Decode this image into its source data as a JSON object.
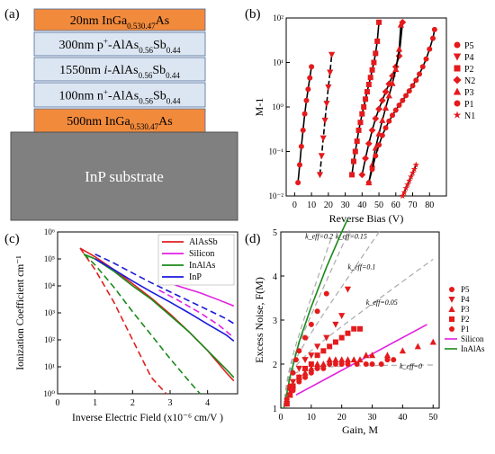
{
  "panels": {
    "a": {
      "label": "(a)",
      "layers": [
        {
          "text": "20nm In",
          "sub1": "0.53",
          "mid": "Ga",
          "sub2": "0.47",
          "tail": "As",
          "color": "#f28a3c"
        },
        {
          "text": "300nm p",
          "sup": "+",
          "mid": "-AlAs",
          "sub1": "0.56",
          "mid2": "Sb",
          "sub2": "0.44",
          "color": "#dce6f2"
        },
        {
          "text": "1550nm ",
          "ital": "i",
          "mid": "-AlAs",
          "sub1": "0.56",
          "mid2": "Sb",
          "sub2": "0.44",
          "color": "#dce6f2"
        },
        {
          "text": "100nm n",
          "sup": "+",
          "mid": "-AlAs",
          "sub1": "0.56",
          "mid2": "Sb",
          "sub2": "0.44",
          "color": "#dce6f2"
        },
        {
          "text": "500nm In",
          "sub1": "0.53",
          "mid": "Ga",
          "sub2": "0.47",
          "tail": "As",
          "color": "#f28a3c"
        }
      ],
      "substrate": {
        "label": "InP substrate",
        "color": "#808080"
      }
    }
  },
  "chart_data": [
    {
      "panel": "(b)",
      "type": "scatter",
      "xlabel": "Reverse Bias (V)",
      "ylabel": "M-1",
      "xlim": [
        -5,
        90
      ],
      "ylim": [
        0.01,
        100
      ],
      "yscale": "log",
      "xticks": [
        "0",
        "10",
        "20",
        "30",
        "40",
        "50",
        "60",
        "70",
        "80"
      ],
      "yticks": [
        "10⁻²",
        "10⁻¹",
        "10⁰",
        "10¹",
        "10²"
      ],
      "legend": [
        "P5",
        "P4",
        "P2",
        "N2",
        "P3",
        "P1",
        "N1"
      ],
      "series": [
        {
          "name": "P5",
          "x": [
            2,
            3,
            4,
            5,
            6,
            7,
            8,
            9,
            10
          ],
          "y": [
            0.02,
            0.05,
            0.13,
            0.3,
            0.7,
            1.4,
            2.5,
            4.5,
            8
          ]
        },
        {
          "name": "P4",
          "x": [
            15,
            16,
            17,
            18,
            19,
            20,
            21,
            22
          ],
          "y": [
            0.03,
            0.08,
            0.2,
            0.5,
            1.2,
            2.8,
            6,
            15
          ]
        },
        {
          "name": "P2",
          "x": [
            34,
            35,
            36,
            37,
            38,
            39,
            40,
            41,
            42,
            43,
            44,
            45,
            46,
            47,
            48,
            49,
            50
          ],
          "y": [
            0.03,
            0.06,
            0.1,
            0.17,
            0.3,
            0.45,
            0.7,
            1.0,
            1.5,
            2.2,
            3.2,
            4.6,
            6.8,
            10,
            16,
            30,
            80
          ]
        },
        {
          "name": "N2",
          "x": [
            40,
            42,
            44,
            46,
            48,
            50,
            52,
            54,
            56,
            58,
            60,
            62,
            64
          ],
          "y": [
            0.03,
            0.07,
            0.15,
            0.3,
            0.55,
            0.9,
            1.4,
            2.2,
            3.3,
            5,
            8,
            14,
            80
          ]
        },
        {
          "name": "P3",
          "x": [
            44,
            46,
            48,
            50,
            52,
            54,
            56,
            58,
            60,
            62,
            63
          ],
          "y": [
            0.02,
            0.05,
            0.12,
            0.25,
            0.5,
            0.95,
            1.8,
            3.4,
            7,
            20,
            70
          ]
        },
        {
          "name": "P1",
          "x": [
            44,
            46,
            48,
            50,
            52,
            54,
            56,
            58,
            60,
            62,
            64,
            66,
            68,
            70,
            72,
            74,
            76,
            78,
            80,
            82,
            83
          ],
          "y": [
            0.02,
            0.04,
            0.08,
            0.14,
            0.23,
            0.34,
            0.48,
            0.65,
            0.85,
            1.1,
            1.4,
            1.8,
            2.3,
            3,
            4,
            5.5,
            8,
            12,
            20,
            35,
            55
          ]
        },
        {
          "name": "N1",
          "x": [
            64,
            65,
            66,
            67,
            68,
            69,
            70,
            71,
            72
          ],
          "y": [
            0.01,
            0.012,
            0.015,
            0.018,
            0.022,
            0.027,
            0.033,
            0.04,
            0.05
          ]
        }
      ]
    },
    {
      "panel": "(c)",
      "type": "line",
      "xlabel": "Inverse Electric Field (x10⁻⁶ cm/V )",
      "ylabel": "Ionization Coefficient cm⁻¹",
      "xlim": [
        0,
        4.8
      ],
      "ylim": [
        1,
        1000000
      ],
      "yscale": "log",
      "xticks": [
        "0",
        "1",
        "2",
        "3",
        "4"
      ],
      "yticks": [
        "10⁰",
        "10¹",
        "10²",
        "10³",
        "10⁴",
        "10⁵",
        "10⁶"
      ],
      "legend": [
        "AlAsSb",
        "Silicon",
        "InAlAs",
        "InP"
      ],
      "series": [
        {
          "name": "AlAsSb",
          "color": "#e02020",
          "dash": "solid",
          "x": [
            0.6,
            1,
            1.5,
            2,
            2.5,
            3,
            3.5,
            4,
            4.5,
            4.7
          ],
          "y": [
            250000,
            120000,
            40000,
            12000,
            3500,
            900,
            200,
            40,
            6,
            3
          ]
        },
        {
          "name": "AlAsSb",
          "color": "#e02020",
          "dash": "dashed",
          "x": [
            0.6,
            1,
            1.5,
            2,
            2.5,
            2.9
          ],
          "y": [
            250000,
            40000,
            2500,
            100,
            4,
            1
          ]
        },
        {
          "name": "Silicon",
          "color": "#e020e0",
          "dash": "solid",
          "x": [
            2.7,
            3.2,
            3.8,
            4.3,
            4.7
          ],
          "y": [
            20000,
            10000,
            5500,
            3000,
            1800
          ]
        },
        {
          "name": "Silicon",
          "color": "#e020e0",
          "dash": "dashed",
          "x": [
            2.7,
            3.2,
            3.8,
            4.3,
            4.7
          ],
          "y": [
            7000,
            3000,
            1000,
            350,
            120
          ]
        },
        {
          "name": "InAlAs",
          "color": "#1a8a1a",
          "dash": "solid",
          "x": [
            0.7,
            1,
            1.5,
            2,
            2.5,
            3,
            3.5,
            4,
            4.5,
            4.7
          ],
          "y": [
            150000,
            100000,
            35000,
            10000,
            3200,
            800,
            200,
            40,
            8,
            4
          ]
        },
        {
          "name": "InAlAs",
          "color": "#1a8a1a",
          "dash": "dashed",
          "x": [
            0.7,
            1,
            1.5,
            2,
            2.5,
            3,
            3.5,
            3.8
          ],
          "y": [
            150000,
            60000,
            9000,
            1100,
            150,
            20,
            3,
            1
          ]
        },
        {
          "name": "InP",
          "color": "#1a1adc",
          "dash": "solid",
          "x": [
            1,
            1.5,
            2,
            2.5,
            3,
            3.5,
            4,
            4.5,
            4.7
          ],
          "y": [
            100000,
            40000,
            15000,
            6000,
            2500,
            1000,
            380,
            150,
            90
          ]
        },
        {
          "name": "InP",
          "color": "#1a1adc",
          "dash": "dashed",
          "x": [
            1,
            1.5,
            2,
            2.5,
            3,
            3.5,
            4,
            4.5,
            4.7
          ],
          "y": [
            150000,
            70000,
            30000,
            13000,
            6000,
            2800,
            1300,
            600,
            400
          ]
        }
      ]
    },
    {
      "panel": "(d)",
      "type": "scatter",
      "xlabel": "Gain, M",
      "ylabel": "Excess Noise, F(M)",
      "xlim": [
        0,
        52
      ],
      "ylim": [
        1,
        5
      ],
      "xticks": [
        "0",
        "10",
        "20",
        "30",
        "40",
        "50"
      ],
      "yticks": [
        "1",
        "2",
        "3",
        "4",
        "5"
      ],
      "legend": [
        "P5",
        "P4",
        "P3",
        "P2",
        "P1",
        "Silicon",
        "InAlAs"
      ],
      "keff_labels": [
        "k_eff=0.2",
        "k_eff=0.15",
        "k_eff=0.1",
        "k_eff=0.05",
        "k_eff=0"
      ],
      "series": [
        {
          "name": "P5",
          "x": [
            2,
            3,
            4,
            5,
            6,
            8,
            10,
            12,
            15
          ],
          "y": [
            1.2,
            1.5,
            1.8,
            2.1,
            2.3,
            2.6,
            2.9,
            3.2,
            3.6
          ]
        },
        {
          "name": "P4",
          "x": [
            2,
            3,
            4,
            6,
            8,
            10,
            12,
            15,
            18,
            20,
            22
          ],
          "y": [
            1.1,
            1.4,
            1.6,
            1.9,
            2.1,
            2.2,
            2.4,
            2.6,
            2.9,
            3.1,
            3.7
          ]
        },
        {
          "name": "P3",
          "x": [
            2,
            3,
            4,
            6,
            8,
            10,
            12,
            14,
            16,
            18,
            20,
            22,
            24,
            26,
            28,
            30,
            35,
            40,
            45,
            50
          ],
          "y": [
            1.1,
            1.3,
            1.5,
            1.7,
            1.8,
            1.9,
            2.0,
            2.0,
            2.1,
            2.1,
            2.1,
            2.1,
            2.1,
            2.1,
            2.2,
            2.2,
            2.2,
            2.3,
            2.4,
            2.5
          ]
        },
        {
          "name": "P2",
          "x": [
            2,
            3,
            4,
            6,
            8,
            10,
            12,
            14,
            16,
            18,
            20,
            22,
            24,
            26
          ],
          "y": [
            1.1,
            1.3,
            1.5,
            1.7,
            1.9,
            2.0,
            2.2,
            2.3,
            2.4,
            2.5,
            2.6,
            2.7,
            2.8,
            2.8
          ]
        },
        {
          "name": "P1",
          "x": [
            2,
            3,
            4,
            6,
            8,
            10,
            12,
            14,
            16,
            18,
            20,
            22,
            25,
            28,
            30,
            33,
            35,
            37
          ],
          "y": [
            1.1,
            1.3,
            1.4,
            1.6,
            1.7,
            1.8,
            1.9,
            1.9,
            2.0,
            2.0,
            2.0,
            2.0,
            2.0,
            2.0,
            2.0,
            2.0,
            2.1,
            2.1
          ]
        }
      ],
      "lines": [
        {
          "name": "Silicon",
          "color": "#e020e0",
          "x": [
            5,
            48
          ],
          "y": [
            1.3,
            2.9
          ]
        },
        {
          "name": "InAlAs",
          "color": "#1a8a1a",
          "x": [
            1,
            3,
            6,
            10,
            15,
            20,
            22
          ],
          "y": [
            1,
            1.7,
            2.5,
            3.3,
            4.2,
            5.0,
            5.3
          ]
        }
      ]
    }
  ]
}
